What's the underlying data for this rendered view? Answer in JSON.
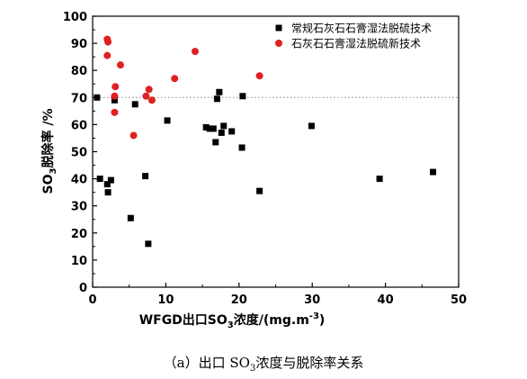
{
  "chart_data": {
    "type": "scatter",
    "xlabel_parts": [
      "WFGD出口SO",
      "3",
      "浓度/(mg.m",
      "-3",
      ")"
    ],
    "ylabel_parts": [
      "SO",
      "3",
      "脱除率 /%"
    ],
    "xlim": [
      0,
      50
    ],
    "ylim": [
      0,
      100
    ],
    "x_ticks": [
      0,
      10,
      20,
      30,
      40,
      50
    ],
    "y_ticks": [
      0,
      10,
      20,
      30,
      40,
      50,
      60,
      70,
      80,
      90,
      100
    ],
    "grid": false,
    "legend_position": "top-right",
    "reference_line": {
      "y": 70,
      "style": "dotted"
    },
    "series": [
      {
        "name": "常规石灰石石膏湿法脱硫技术",
        "marker": "square",
        "color": "#000000",
        "points": [
          [
            0.6,
            70
          ],
          [
            1.0,
            40
          ],
          [
            2.0,
            38
          ],
          [
            2.1,
            35
          ],
          [
            2.5,
            39.5
          ],
          [
            3.0,
            69
          ],
          [
            5.2,
            25.5
          ],
          [
            5.8,
            67.5
          ],
          [
            7.2,
            41
          ],
          [
            7.6,
            16
          ],
          [
            10.2,
            61.5
          ],
          [
            15.5,
            59
          ],
          [
            16.0,
            58.5
          ],
          [
            16.5,
            58.5
          ],
          [
            16.8,
            53.5
          ],
          [
            17.0,
            69.5
          ],
          [
            17.3,
            72
          ],
          [
            17.6,
            57
          ],
          [
            17.9,
            59.5
          ],
          [
            19.0,
            57.5
          ],
          [
            20.4,
            51.5
          ],
          [
            20.5,
            70.5
          ],
          [
            22.8,
            35.5
          ],
          [
            29.9,
            59.5
          ],
          [
            39.2,
            40
          ],
          [
            46.5,
            42.5
          ]
        ]
      },
      {
        "name": "石灰石石膏湿法脱硫新技术",
        "marker": "circle",
        "color": "#e02020",
        "points": [
          [
            2.0,
            91.5
          ],
          [
            2.0,
            85.5
          ],
          [
            2.1,
            90.5
          ],
          [
            3.0,
            70.5
          ],
          [
            3.1,
            74
          ],
          [
            3.0,
            64.5
          ],
          [
            3.8,
            82
          ],
          [
            5.6,
            56
          ],
          [
            7.3,
            70.5
          ],
          [
            7.7,
            73
          ],
          [
            8.1,
            69
          ],
          [
            11.2,
            77
          ],
          [
            14.0,
            87
          ],
          [
            22.8,
            78
          ]
        ]
      }
    ]
  },
  "caption_parts": [
    "（a）出口 SO",
    "3",
    "浓度与脱除率关系"
  ]
}
